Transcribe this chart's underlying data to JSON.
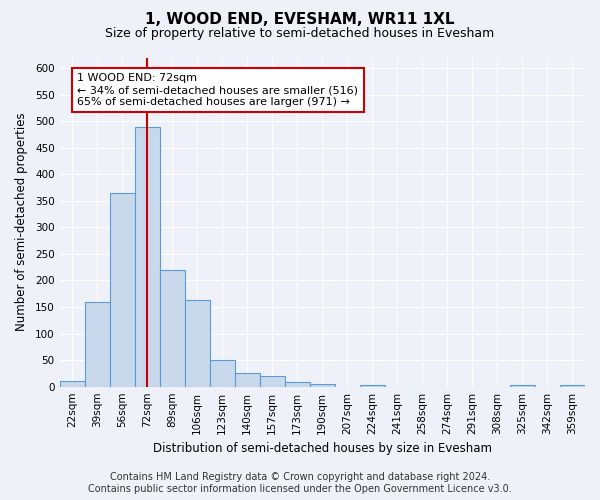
{
  "title": "1, WOOD END, EVESHAM, WR11 1XL",
  "subtitle": "Size of property relative to semi-detached houses in Evesham",
  "xlabel": "Distribution of semi-detached houses by size in Evesham",
  "ylabel": "Number of semi-detached properties",
  "categories": [
    "22sqm",
    "39sqm",
    "56sqm",
    "72sqm",
    "89sqm",
    "106sqm",
    "123sqm",
    "140sqm",
    "157sqm",
    "173sqm",
    "190sqm",
    "207sqm",
    "224sqm",
    "241sqm",
    "258sqm",
    "274sqm",
    "291sqm",
    "308sqm",
    "325sqm",
    "342sqm",
    "359sqm"
  ],
  "values": [
    10,
    160,
    365,
    490,
    220,
    163,
    50,
    25,
    20,
    8,
    5,
    0,
    4,
    0,
    0,
    0,
    0,
    0,
    4,
    0,
    4
  ],
  "bar_color": "#c9d9ec",
  "bar_edge_color": "#5b9bd5",
  "highlight_index": 3,
  "highlight_line_color": "#cc0000",
  "annotation_text": "1 WOOD END: 72sqm\n← 34% of semi-detached houses are smaller (516)\n65% of semi-detached houses are larger (971) →",
  "annotation_box_color": "#ffffff",
  "annotation_box_edge_color": "#cc0000",
  "ylim": [
    0,
    620
  ],
  "yticks": [
    0,
    50,
    100,
    150,
    200,
    250,
    300,
    350,
    400,
    450,
    500,
    550,
    600
  ],
  "footer_line1": "Contains HM Land Registry data © Crown copyright and database right 2024.",
  "footer_line2": "Contains public sector information licensed under the Open Government Licence v3.0.",
  "bg_color": "#eef2f8",
  "plot_bg_color": "#eef2f8",
  "grid_color": "#ffffff",
  "title_fontsize": 11,
  "subtitle_fontsize": 9,
  "axis_label_fontsize": 8.5,
  "tick_fontsize": 7.5,
  "footer_fontsize": 7,
  "annotation_fontsize": 8
}
